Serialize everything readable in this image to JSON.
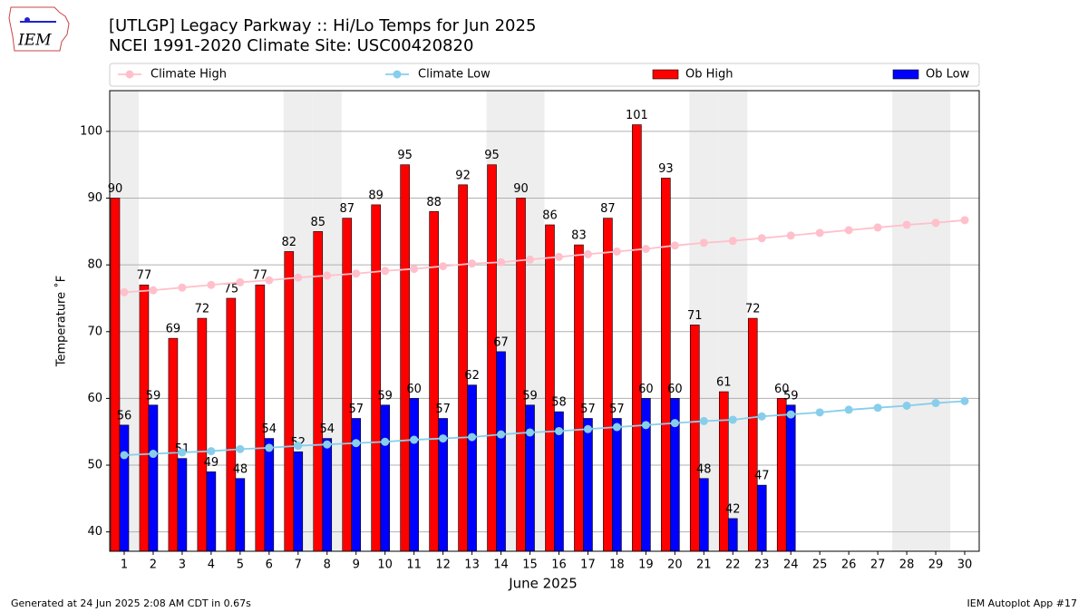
{
  "chart_data": {
    "type": "bar",
    "title": "[UTLGP] Legacy Parkway  :: Hi/Lo Temps for Jun 2025",
    "subtitle": "NCEI 1991-2020 Climate Site: USC00420820",
    "logo_text": "IEM",
    "xlabel": "June 2025",
    "ylabel": "Temperature ˚F",
    "footer_left": "Generated at 24 Jun 2025 2:08 AM CDT in 0.67s",
    "footer_right": "IEM Autoplot App #17",
    "x": [
      1,
      2,
      3,
      4,
      5,
      6,
      7,
      8,
      9,
      10,
      11,
      12,
      13,
      14,
      15,
      16,
      17,
      18,
      19,
      20,
      21,
      22,
      23,
      24,
      25,
      26,
      27,
      28,
      29,
      30
    ],
    "xlim": [
      0.5,
      30.5
    ],
    "xticks": [
      1,
      2,
      3,
      4,
      5,
      6,
      7,
      8,
      9,
      10,
      11,
      12,
      13,
      14,
      15,
      16,
      17,
      18,
      19,
      20,
      21,
      22,
      23,
      24,
      25,
      26,
      27,
      28,
      29,
      30
    ],
    "ylim": [
      37.1,
      106.1
    ],
    "yticks": [
      40,
      50,
      60,
      70,
      80,
      90,
      100
    ],
    "grid": true,
    "shaded_days": [
      1,
      7,
      8,
      14,
      15,
      21,
      22,
      28,
      29
    ],
    "shade_color": "#eeeeee",
    "series": [
      {
        "name": "Climate High",
        "type": "line",
        "color": "#ffc0cb",
        "values": [
          75.9,
          76.2,
          76.6,
          77.0,
          77.4,
          77.7,
          78.1,
          78.4,
          78.7,
          79.1,
          79.4,
          79.8,
          80.2,
          80.4,
          80.8,
          81.2,
          81.6,
          82.0,
          82.4,
          82.9,
          83.3,
          83.6,
          84.0,
          84.4,
          84.8,
          85.2,
          85.6,
          86.0,
          86.3,
          86.7
        ]
      },
      {
        "name": "Climate Low",
        "type": "line",
        "color": "#87ceeb",
        "values": [
          51.5,
          51.7,
          51.9,
          52.1,
          52.4,
          52.6,
          52.9,
          53.1,
          53.3,
          53.5,
          53.8,
          54.0,
          54.2,
          54.6,
          54.9,
          55.1,
          55.4,
          55.7,
          56.0,
          56.3,
          56.6,
          56.8,
          57.3,
          57.6,
          57.9,
          58.3,
          58.6,
          58.9,
          59.3,
          59.6
        ]
      },
      {
        "name": "Ob High",
        "type": "bar",
        "color": "#ff0000",
        "values": [
          90,
          77,
          69,
          72,
          75,
          77,
          82,
          85,
          87,
          89,
          95,
          88,
          92,
          95,
          90,
          86,
          83,
          87,
          101,
          93,
          71,
          61,
          72,
          60,
          null,
          null,
          null,
          null,
          null,
          null
        ]
      },
      {
        "name": "Ob Low",
        "type": "bar",
        "color": "#0000ff",
        "values": [
          56,
          59,
          51,
          49,
          48,
          54,
          52,
          54,
          57,
          59,
          60,
          57,
          62,
          67,
          59,
          58,
          57,
          57,
          60,
          60,
          48,
          42,
          47,
          59,
          null,
          null,
          null,
          null,
          null,
          null
        ]
      }
    ]
  }
}
